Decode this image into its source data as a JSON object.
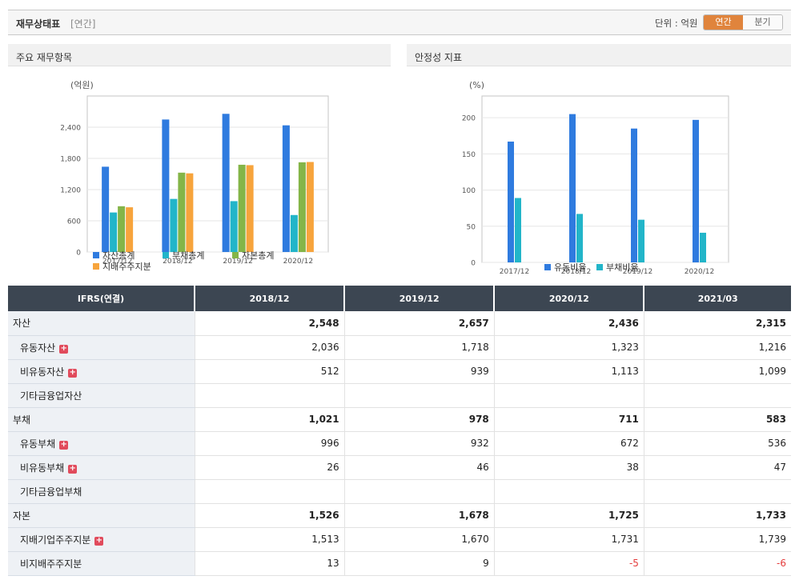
{
  "header": {
    "title": "재무상태표",
    "subtitle": "[연간]",
    "unit_label": "단위 : 억원",
    "toggle": {
      "annual": "연간",
      "quarter": "분기"
    }
  },
  "colors": {
    "assets": "#2f7bdf",
    "liabilities": "#22b5c9",
    "equity": "#84b548",
    "controlling": "#f7a43c",
    "current_ratio": "#2f7bdf",
    "debt_ratio": "#22b5c9"
  },
  "chart_data": [
    {
      "type": "bar",
      "title": "주요 재무항목",
      "ylabel": "(억원)",
      "categories": [
        "2017/12",
        "2018/12",
        "2019/12",
        "2020/12"
      ],
      "ylim": [
        0,
        3000
      ],
      "yticks": [
        0,
        600,
        1200,
        1800,
        2400
      ],
      "ytick_labels": [
        "0",
        "600",
        "1,200",
        "1,800",
        "2,400"
      ],
      "series": [
        {
          "name": "자산총계",
          "values": [
            1640,
            2548,
            2657,
            2436
          ]
        },
        {
          "name": "부채총계",
          "values": [
            760,
            1021,
            978,
            711
          ]
        },
        {
          "name": "자본총계",
          "values": [
            880,
            1526,
            1678,
            1725
          ]
        },
        {
          "name": "지배주주지분",
          "values": [
            860,
            1513,
            1670,
            1731
          ]
        }
      ]
    },
    {
      "type": "bar",
      "title": "안정성 지표",
      "ylabel": "(%)",
      "categories": [
        "2017/12",
        "2018/12",
        "2019/12",
        "2020/12"
      ],
      "ylim": [
        0,
        230
      ],
      "yticks": [
        0,
        50,
        100,
        150,
        200
      ],
      "ytick_labels": [
        "0",
        "50",
        "100",
        "150",
        "200"
      ],
      "series": [
        {
          "name": "유동비율",
          "values": [
            167,
            205,
            185,
            197
          ]
        },
        {
          "name": "부채비율",
          "values": [
            89,
            67,
            59,
            41
          ]
        }
      ]
    }
  ],
  "table": {
    "headers": [
      "IFRS(연결)",
      "2018/12",
      "2019/12",
      "2020/12",
      "2021/03"
    ],
    "rows": [
      {
        "label": "자산",
        "values": [
          "2,548",
          "2,657",
          "2,436",
          "2,315"
        ]
      },
      {
        "label": "유동자산",
        "values": [
          "2,036",
          "1,718",
          "1,323",
          "1,216"
        ]
      },
      {
        "label": "비유동자산",
        "values": [
          "512",
          "939",
          "1,113",
          "1,099"
        ]
      },
      {
        "label": "기타금융업자산",
        "values": [
          "",
          "",
          "",
          ""
        ]
      },
      {
        "label": "부채",
        "values": [
          "1,021",
          "978",
          "711",
          "583"
        ]
      },
      {
        "label": "유동부채",
        "values": [
          "996",
          "932",
          "672",
          "536"
        ]
      },
      {
        "label": "비유동부채",
        "values": [
          "26",
          "46",
          "38",
          "47"
        ]
      },
      {
        "label": "기타금융업부채",
        "values": [
          "",
          "",
          "",
          ""
        ]
      },
      {
        "label": "자본",
        "values": [
          "1,526",
          "1,678",
          "1,725",
          "1,733"
        ]
      },
      {
        "label": "지배기업주주지분",
        "values": [
          "1,513",
          "1,670",
          "1,731",
          "1,739"
        ]
      },
      {
        "label": "비지배주주지분",
        "values": [
          "13",
          "9",
          "-5",
          "-6"
        ]
      }
    ]
  }
}
